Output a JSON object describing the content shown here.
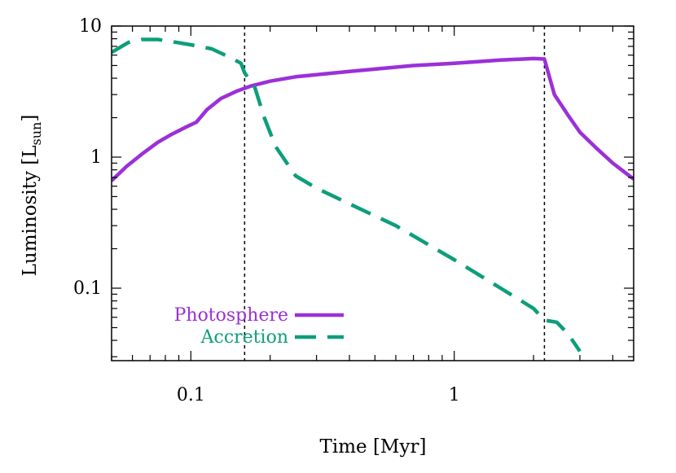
{
  "chart_data": {
    "type": "line",
    "scale": {
      "x": "log",
      "y": "log"
    },
    "xlabel": "Time [Myr]",
    "ylabel_main": "Luminosity [L",
    "ylabel_sub": "sun",
    "ylabel_close": "]",
    "xlim": [
      0.05,
      4.8
    ],
    "ylim": [
      0.028,
      10
    ],
    "x_ticks": [
      {
        "value": 0.1,
        "label": "0.1"
      },
      {
        "value": 1,
        "label": "1"
      }
    ],
    "y_ticks": [
      {
        "value": 0.1,
        "label": "0.1"
      },
      {
        "value": 1,
        "label": "1"
      },
      {
        "value": 10,
        "label": "10"
      }
    ],
    "vlines": [
      0.16,
      2.2
    ],
    "series": [
      {
        "name": "Photosphere",
        "color": "#9b30d9",
        "dash": "solid",
        "x": [
          0.05,
          0.057,
          0.065,
          0.075,
          0.085,
          0.095,
          0.105,
          0.115,
          0.13,
          0.15,
          0.17,
          0.2,
          0.25,
          0.4,
          0.7,
          1.0,
          1.5,
          2.0,
          2.2,
          2.4,
          2.7,
          3.0,
          3.5,
          4.0,
          4.8
        ],
        "y": [
          0.66,
          0.85,
          1.05,
          1.3,
          1.5,
          1.68,
          1.85,
          2.3,
          2.8,
          3.2,
          3.5,
          3.8,
          4.1,
          4.5,
          5.0,
          5.2,
          5.5,
          5.65,
          5.6,
          3.0,
          2.1,
          1.55,
          1.15,
          0.9,
          0.68
        ]
      },
      {
        "name": "Accretion",
        "color": "#0d9e7a",
        "dash": "dashed",
        "x": [
          0.05,
          0.058,
          0.065,
          0.075,
          0.085,
          0.1,
          0.12,
          0.14,
          0.155,
          0.16,
          0.175,
          0.19,
          0.21,
          0.25,
          0.3,
          0.4,
          0.6,
          1.0,
          1.5,
          2.0,
          2.2,
          2.45,
          2.7,
          3.0
        ],
        "y": [
          6.3,
          7.5,
          7.9,
          7.9,
          7.6,
          7.2,
          6.7,
          5.8,
          5.2,
          4.4,
          3.4,
          2.0,
          1.2,
          0.72,
          0.58,
          0.44,
          0.3,
          0.165,
          0.1,
          0.07,
          0.057,
          0.055,
          0.045,
          0.033
        ]
      }
    ],
    "legend": {
      "placement": "bottom-left",
      "entries": [
        {
          "label": "Photosphere",
          "color": "#9b30d9",
          "dash": "solid"
        },
        {
          "label": "Accretion",
          "color": "#0d9e7a",
          "dash": "dashed"
        }
      ]
    }
  }
}
